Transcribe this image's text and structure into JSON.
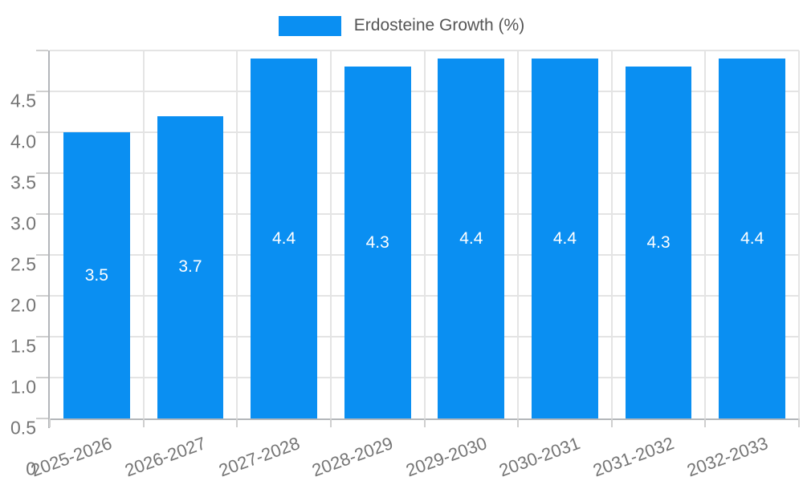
{
  "legend": {
    "label": "Erdosteine Growth (%)"
  },
  "colors": {
    "bar": "#0a8ff2",
    "grid": "#e4e4e4",
    "axis": "#b3b6ba",
    "tick": "#cfcfcf",
    "tick_label": "#757575",
    "bar_label": "#ffffff",
    "legend_text": "#555555",
    "background": "#ffffff"
  },
  "chart_data": {
    "type": "bar",
    "title": "",
    "xlabel": "",
    "ylabel": "",
    "series_name": "Erdosteine Growth (%)",
    "categories": [
      "2025-2026",
      "2026-2027",
      "2027-2028",
      "2028-2029",
      "2029-2030",
      "2030-2031",
      "2031-2032",
      "2032-2033"
    ],
    "values": [
      3.5,
      3.7,
      4.4,
      4.3,
      4.4,
      4.4,
      4.3,
      4.4
    ],
    "bar_labels": [
      "3.5",
      "3.7",
      "4.4",
      "4.3",
      "4.4",
      "4.4",
      "4.3",
      "4.4"
    ],
    "ylim": [
      0,
      4.5
    ],
    "ytick_labels": [
      "0",
      "0.5",
      "1.0",
      "1.5",
      "2.0",
      "2.5",
      "3.0",
      "3.5",
      "4.0",
      "4.5"
    ],
    "grid": true,
    "legend_position": "top-center",
    "x_label_rotation_deg": -20,
    "bar_width_fraction": 0.71
  }
}
